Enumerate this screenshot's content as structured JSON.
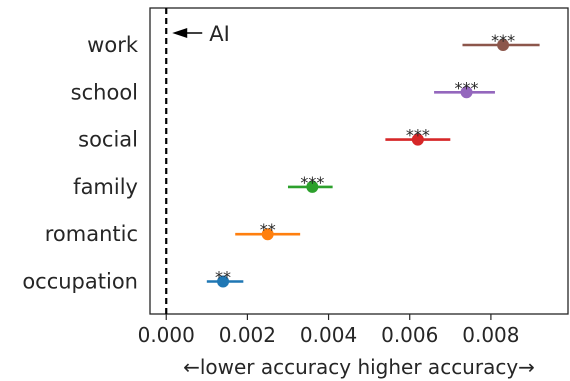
{
  "chart_data": {
    "type": "scatter",
    "xlabel": "←lower accuracy  higher accuracy→",
    "xlim": [
      -0.0004,
      0.0099
    ],
    "x_ticks": [
      "0.000",
      "0.002",
      "0.004",
      "0.006",
      "0.008"
    ],
    "x_tick_values": [
      0,
      0.002,
      0.004,
      0.006,
      0.008
    ],
    "reference_line": {
      "x": 0,
      "label": "AI",
      "style": "dashed"
    },
    "grid": false,
    "categories": [
      "work",
      "school",
      "social",
      "family",
      "romantic",
      "occupation"
    ],
    "points": [
      {
        "category": "work",
        "x": 0.0083,
        "ci": [
          0.0073,
          0.0092
        ],
        "sig": "***",
        "color": "#8c564b"
      },
      {
        "category": "school",
        "x": 0.0074,
        "ci": [
          0.0066,
          0.0081
        ],
        "sig": "***",
        "color": "#9467bd"
      },
      {
        "category": "social",
        "x": 0.0062,
        "ci": [
          0.0054,
          0.007
        ],
        "sig": "***",
        "color": "#d62728"
      },
      {
        "category": "family",
        "x": 0.0036,
        "ci": [
          0.003,
          0.0041
        ],
        "sig": "***",
        "color": "#2ca02c"
      },
      {
        "category": "romantic",
        "x": 0.0025,
        "ci": [
          0.0017,
          0.0033
        ],
        "sig": "**",
        "color": "#ff7f0e"
      },
      {
        "category": "occupation",
        "x": 0.0014,
        "ci": [
          0.001,
          0.0019
        ],
        "sig": "**",
        "color": "#1f77b4"
      }
    ]
  }
}
